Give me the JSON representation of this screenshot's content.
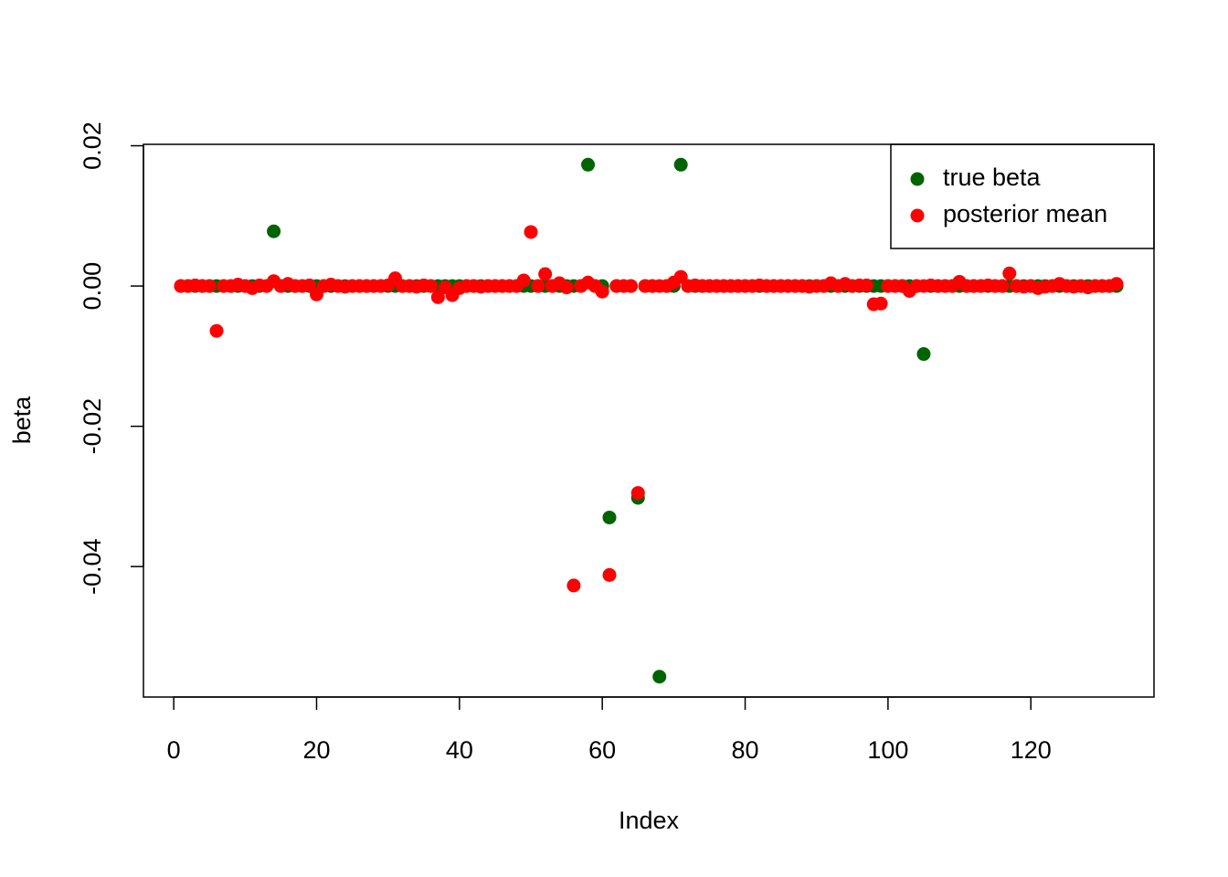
{
  "chart_data": {
    "type": "scatter",
    "x_label": "Index",
    "y_label": "beta",
    "x": [
      1,
      2,
      3,
      4,
      5,
      6,
      7,
      8,
      9,
      10,
      11,
      12,
      13,
      14,
      15,
      16,
      17,
      18,
      19,
      20,
      21,
      22,
      23,
      24,
      25,
      26,
      27,
      28,
      29,
      30,
      31,
      32,
      33,
      34,
      35,
      36,
      37,
      38,
      39,
      40,
      41,
      42,
      43,
      44,
      45,
      46,
      47,
      48,
      49,
      50,
      51,
      52,
      53,
      54,
      55,
      56,
      57,
      58,
      59,
      60,
      61,
      62,
      63,
      64,
      65,
      66,
      67,
      68,
      69,
      70,
      71,
      72,
      73,
      74,
      75,
      76,
      77,
      78,
      79,
      80,
      81,
      82,
      83,
      84,
      85,
      86,
      87,
      88,
      89,
      90,
      91,
      92,
      93,
      94,
      95,
      96,
      97,
      98,
      99,
      100,
      101,
      102,
      103,
      104,
      105,
      106,
      107,
      108,
      109,
      110,
      111,
      112,
      113,
      114,
      115,
      116,
      117,
      118,
      119,
      120,
      121,
      122,
      123,
      124,
      125,
      126,
      127,
      128,
      129,
      130,
      131,
      132
    ],
    "series": [
      {
        "name": "true beta",
        "color": "#006400",
        "values": [
          0,
          0,
          0,
          0,
          0,
          0,
          0,
          0,
          0,
          0,
          0,
          0,
          0,
          0.0078,
          0,
          0,
          0,
          0,
          0,
          0,
          0,
          0,
          0,
          0,
          0,
          0,
          0,
          0,
          0,
          0,
          0,
          0,
          0,
          0,
          0,
          0,
          0,
          0,
          0,
          0,
          0,
          0,
          0,
          0,
          0,
          0,
          0,
          0,
          0,
          0,
          0,
          0,
          0,
          0,
          0,
          0,
          0,
          0.0173,
          0,
          0,
          -0.033,
          0,
          0,
          0,
          -0.0302,
          0,
          0,
          -0.0557,
          0,
          0,
          0.0173,
          0,
          0,
          0,
          0,
          0,
          0,
          0,
          0,
          0,
          0,
          0,
          0,
          0,
          0,
          0,
          0,
          0,
          0,
          0,
          0,
          0,
          0,
          0,
          0,
          0,
          0,
          0,
          0,
          0,
          0,
          0,
          0,
          0,
          -0.0097,
          0,
          0,
          0,
          0,
          0,
          0,
          0,
          0,
          0,
          0,
          0,
          0,
          0,
          0,
          0,
          0,
          0,
          0,
          0,
          0,
          0,
          0,
          0,
          0,
          0,
          0,
          0
        ]
      },
      {
        "name": "posterior mean",
        "color": "#ff0000",
        "values": [
          0,
          0,
          0.0001,
          0,
          0,
          -0.0064,
          0,
          0,
          0.0002,
          0,
          -0.0003,
          0.0001,
          0,
          0.0007,
          0,
          0.0003,
          0,
          0,
          0.0001,
          -0.0012,
          0,
          0.0002,
          0,
          -0.0001,
          0,
          0,
          0,
          0,
          0,
          0.0001,
          0.0011,
          0,
          0,
          -0.0001,
          0.0001,
          0,
          -0.0016,
          -0.0002,
          -0.0013,
          -0.0003,
          0,
          0,
          -0.0001,
          0,
          0,
          0,
          0,
          0,
          0.0008,
          0.0077,
          0,
          0.0017,
          0,
          0.0004,
          -0.0002,
          -0.0427,
          0,
          0.0005,
          0,
          -0.0008,
          -0.0412,
          0,
          0,
          0,
          -0.0295,
          0,
          0,
          0,
          0,
          0.0005,
          0.0013,
          0,
          0.0001,
          0,
          0,
          0,
          0,
          0,
          0,
          0,
          0,
          0.0001,
          0,
          0,
          0,
          0,
          0,
          0,
          -0.0001,
          0,
          0,
          0.0004,
          0,
          0.0003,
          0,
          0.0001,
          0.0001,
          -0.0026,
          -0.0025,
          0,
          0,
          0,
          -0.0007,
          0,
          0,
          0.0001,
          0,
          0,
          0,
          0.0006,
          0,
          0,
          0,
          0.0001,
          0,
          0,
          0.0018,
          0,
          -0.0001,
          0,
          -0.0003,
          -0.0001,
          0,
          0.0003,
          0,
          -0.0001,
          0,
          -0.0002,
          0,
          0,
          0,
          0.0003
        ]
      }
    ],
    "xlim": [
      -4.24,
      137.24
    ],
    "xticks": [
      0,
      20,
      40,
      60,
      80,
      100,
      120
    ],
    "ylim": [
      -0.0586,
      0.0202
    ],
    "yticks": [
      -0.04,
      -0.02,
      {
        "value": 0,
        "label": "0.00"
      },
      0.02
    ],
    "legend": "top-right"
  }
}
